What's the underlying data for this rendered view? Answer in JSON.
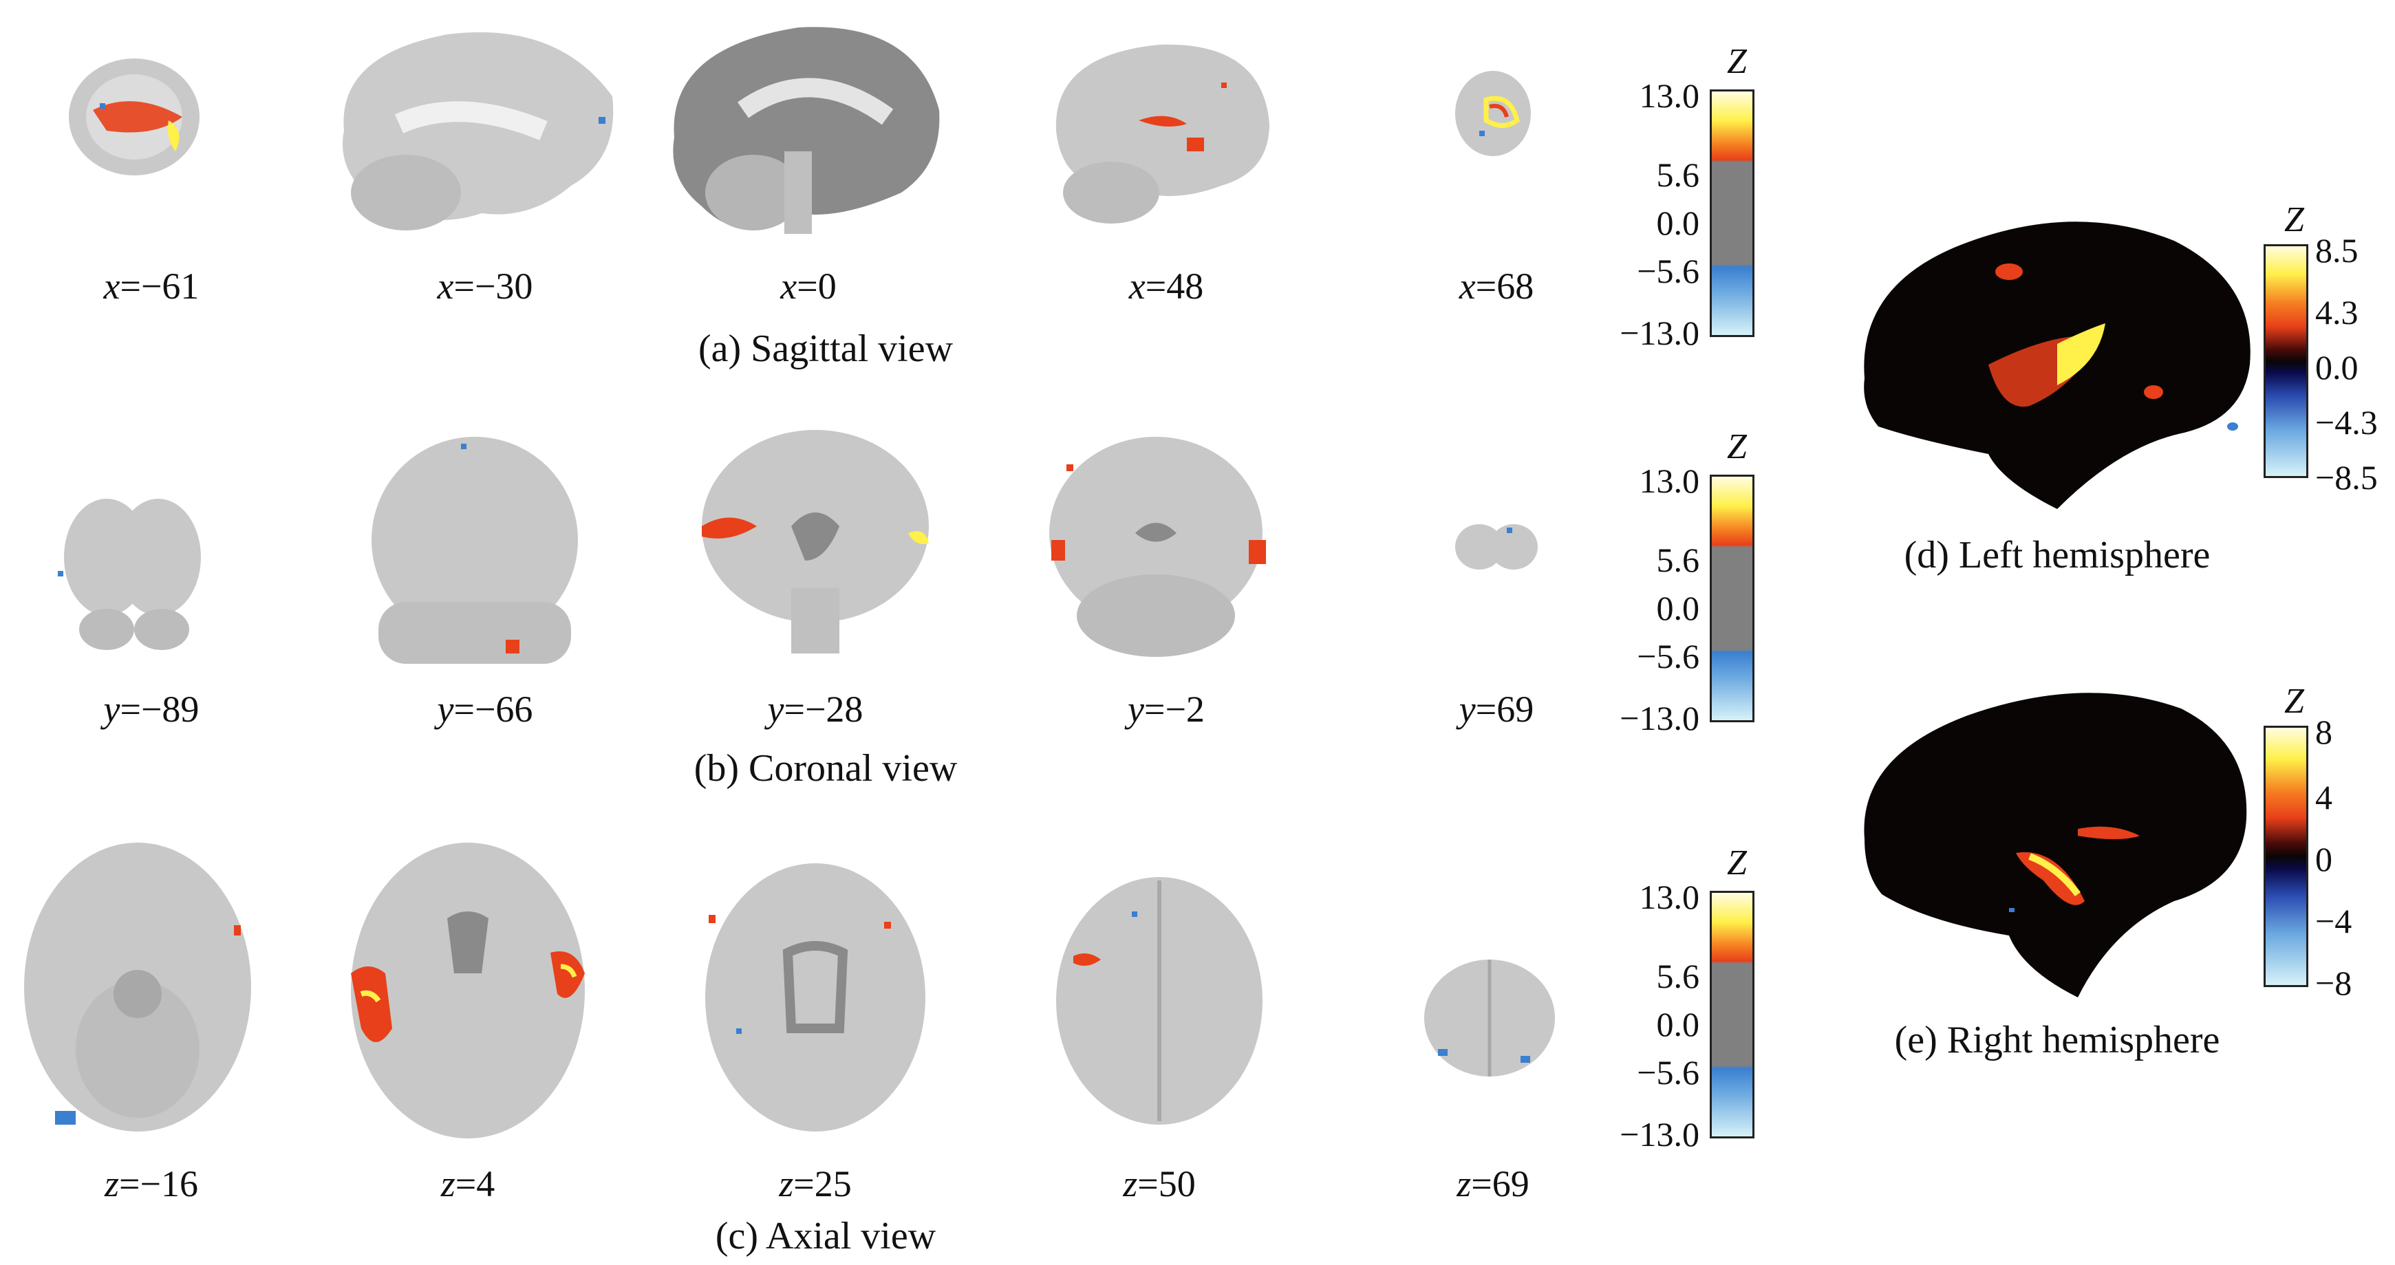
{
  "rows": [
    {
      "caption": "(a) Sagittal view",
      "axis": "x",
      "slices": [
        {
          "label": "x=−61",
          "axis": "x",
          "value": "−61"
        },
        {
          "label": "x=−30",
          "axis": "x",
          "value": "−30"
        },
        {
          "label": "x=0",
          "axis": "x",
          "value": "0"
        },
        {
          "label": "x=48",
          "axis": "x",
          "value": "48"
        },
        {
          "label": "x=68",
          "axis": "x",
          "value": "68"
        }
      ],
      "colorbar": {
        "title": "Z",
        "ticks": [
          "13.0",
          "5.6",
          "0.0",
          "−5.6",
          "−13.0"
        ]
      }
    },
    {
      "caption": "(b) Coronal view",
      "axis": "y",
      "slices": [
        {
          "label": "y=−89",
          "axis": "y",
          "value": "−89"
        },
        {
          "label": "y=−66",
          "axis": "y",
          "value": "−66"
        },
        {
          "label": "y=−28",
          "axis": "y",
          "value": "−28"
        },
        {
          "label": "y=−2",
          "axis": "y",
          "value": "−2"
        },
        {
          "label": "y=69",
          "axis": "y",
          "value": "69"
        }
      ],
      "colorbar": {
        "title": "Z",
        "ticks": [
          "13.0",
          "5.6",
          "0.0",
          "−5.6",
          "−13.0"
        ]
      }
    },
    {
      "caption": "(c) Axial view",
      "axis": "z",
      "slices": [
        {
          "label": "z=−16",
          "axis": "z",
          "value": "−16"
        },
        {
          "label": "z=4",
          "axis": "z",
          "value": "4"
        },
        {
          "label": "z=25",
          "axis": "z",
          "value": "25"
        },
        {
          "label": "z=50",
          "axis": "z",
          "value": "50"
        },
        {
          "label": "z=69",
          "axis": "z",
          "value": "69"
        }
      ],
      "colorbar": {
        "title": "Z",
        "ticks": [
          "13.0",
          "5.6",
          "0.0",
          "−5.6",
          "−13.0"
        ]
      }
    }
  ],
  "hemispheres": [
    {
      "caption": "(d) Left hemisphere",
      "colorbar": {
        "title": "Z",
        "ticks": [
          "8.5",
          "4.3",
          "0.0",
          "−4.3",
          "−8.5"
        ]
      }
    },
    {
      "caption": "(e) Right hemisphere",
      "colorbar": {
        "title": "Z",
        "ticks": [
          "8",
          "4",
          "0",
          "−4",
          "−8"
        ]
      }
    }
  ],
  "colors": {
    "brain_gray": "#c8c8c8",
    "brain_dark": "#8a8a8a",
    "activation_hot": "#e8401a",
    "activation_yellow": "#fff04a",
    "activation_cool": "#3a7fd0",
    "colorbar_mid_gray": "#808080",
    "surface_black": "#0a0505"
  }
}
